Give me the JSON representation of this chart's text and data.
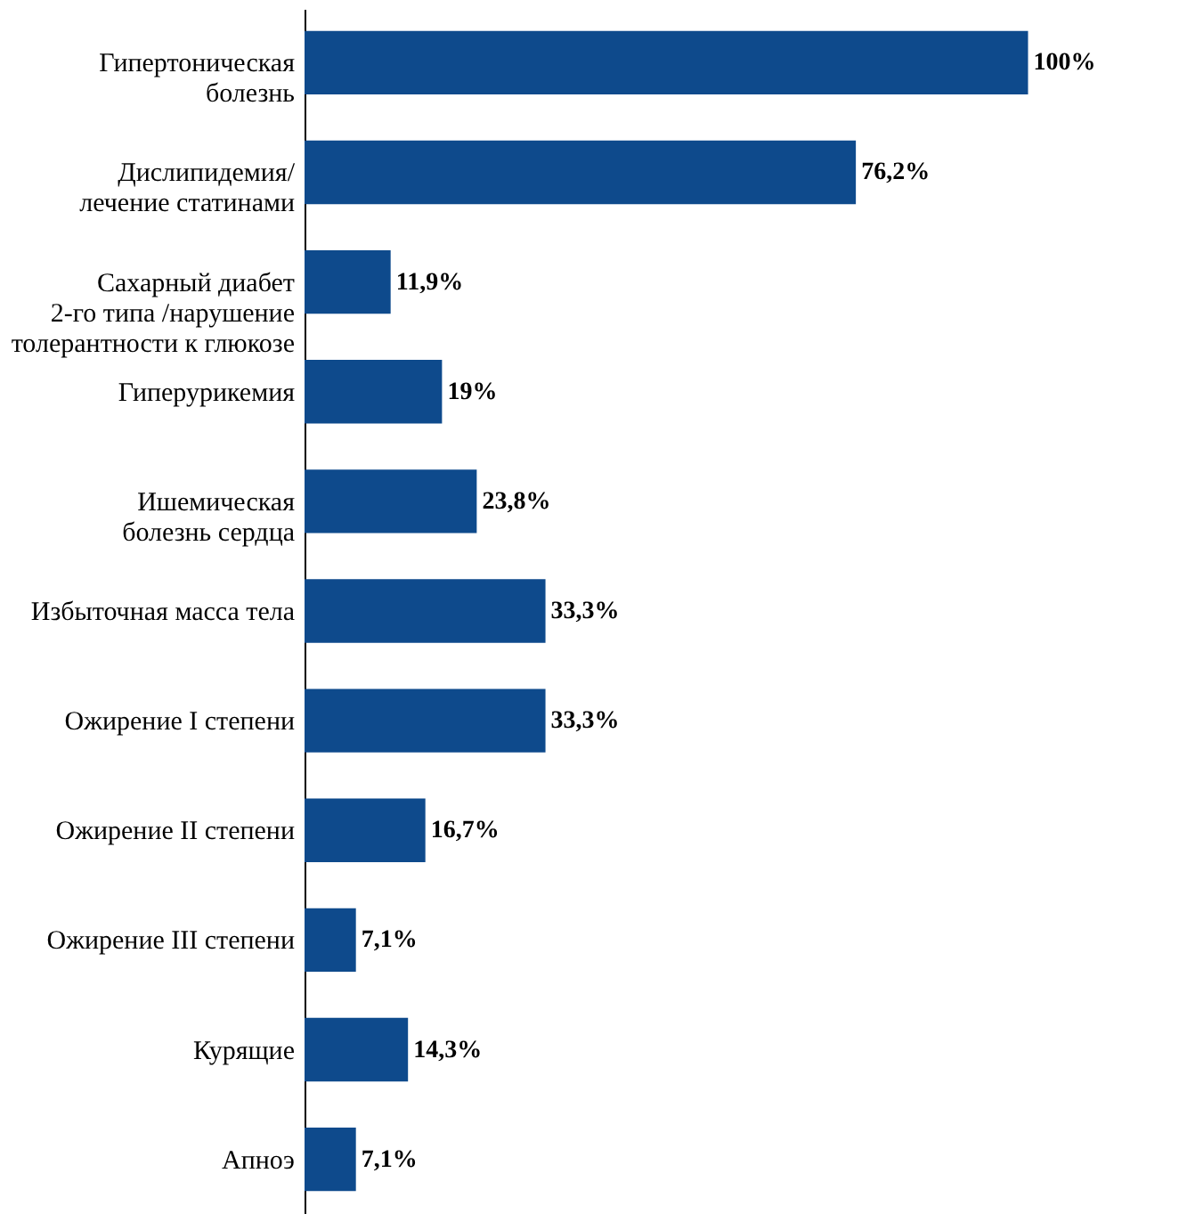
{
  "chart_data": {
    "type": "bar",
    "orientation": "horizontal",
    "categories": [
      "Гипертоническая\nболезнь",
      "Дислипидемия/\nлечение статинами",
      "Сахарный диабет\n2-го типа /нарушение\nтолерантности к глюкозе",
      "Гиперурикемия",
      "Ишемическая\nболезнь сердца",
      "Избыточная масса тела",
      "Ожирение I степени",
      "Ожирение II степени",
      "Ожирение III степени",
      "Курящие",
      "Апноэ"
    ],
    "values": [
      100,
      76.2,
      11.9,
      19,
      23.8,
      33.3,
      33.3,
      16.7,
      7.1,
      14.3,
      7.1
    ],
    "value_labels": [
      "100%",
      "76,2%",
      "11,9%",
      "19%",
      "23,8%",
      "33,3%",
      "33,3%",
      "16,7%",
      "7,1%",
      "14,3%",
      "7,1%"
    ],
    "color": "#0e4a8c"
  }
}
